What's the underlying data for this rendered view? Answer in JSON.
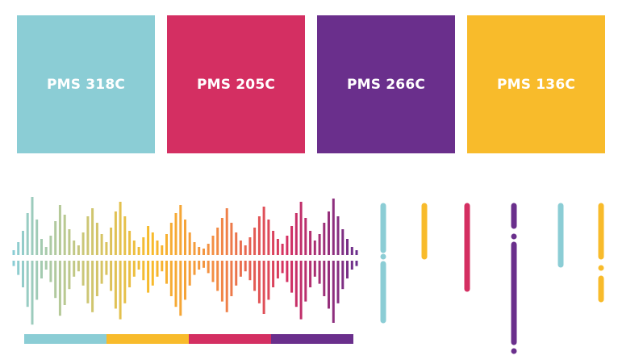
{
  "swatches": [
    {
      "label": "PMS 318C",
      "color": "#8BCDD5"
    },
    {
      "label": "PMS 205C",
      "color": "#D42F62"
    },
    {
      "label": "PMS 266C",
      "color": "#6A2F8C"
    },
    {
      "label": "PMS 136C",
      "color": "#F8BB2B"
    }
  ]
}
